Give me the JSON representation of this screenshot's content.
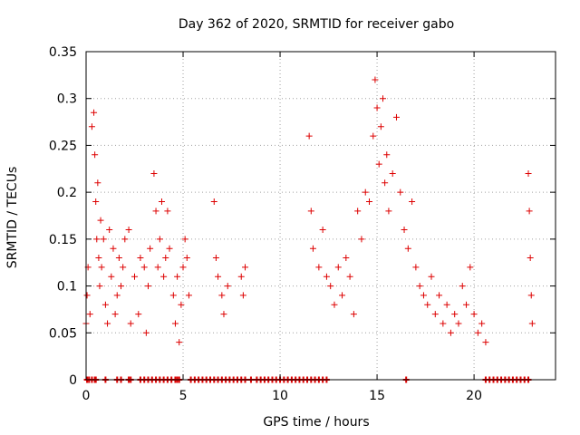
{
  "chart_data": {
    "type": "scatter",
    "title": "Day 362 of 2020, SRMTID for receiver gabo",
    "xlabel": "GPS time / hours",
    "ylabel": "SRMTID / TECUs",
    "xlim": [
      0,
      24.2
    ],
    "ylim": [
      0,
      0.35
    ],
    "xticks": [
      0,
      5,
      10,
      15,
      20
    ],
    "xtick_labels": [
      "0",
      "5",
      "10",
      "15",
      "20"
    ],
    "yticks": [
      0,
      0.05,
      0.1,
      0.15,
      0.2,
      0.25,
      0.3,
      0.35
    ],
    "ytick_labels": [
      "0",
      "0.05",
      "0.1",
      "0.15",
      "0.2",
      "0.25",
      "0.3",
      "0.35"
    ],
    "grid": true,
    "marker": "+",
    "color": "#dd0000",
    "series": [
      {
        "name": "SRMTID",
        "x": [
          0.0,
          0.05,
          0.1,
          0.2,
          0.3,
          0.4,
          0.45,
          0.5,
          0.55,
          0.6,
          0.65,
          0.7,
          0.75,
          0.8,
          0.9,
          1.0,
          1.1,
          1.2,
          1.3,
          1.4,
          1.5,
          1.6,
          1.7,
          1.8,
          1.9,
          2.0,
          2.2,
          2.3,
          2.5,
          2.7,
          2.8,
          3.0,
          3.1,
          3.2,
          3.3,
          3.5,
          3.6,
          3.7,
          3.8,
          3.9,
          4.0,
          4.1,
          4.2,
          4.3,
          4.5,
          4.6,
          4.7,
          4.8,
          4.9,
          5.0,
          5.1,
          5.2,
          5.3,
          6.6,
          6.7,
          6.8,
          7.0,
          7.1,
          7.3,
          8.0,
          8.1,
          8.2,
          11.5,
          11.6,
          11.7,
          12.0,
          12.2,
          12.4,
          12.6,
          12.8,
          13.0,
          13.2,
          13.4,
          13.6,
          13.8,
          14.0,
          14.2,
          14.4,
          14.6,
          14.8,
          14.9,
          15.0,
          15.1,
          15.2,
          15.3,
          15.4,
          15.5,
          15.6,
          15.8,
          16.0,
          16.2,
          16.4,
          16.6,
          16.8,
          17.0,
          17.2,
          17.4,
          17.6,
          17.8,
          18.0,
          18.2,
          18.4,
          18.6,
          18.8,
          19.0,
          19.2,
          19.4,
          19.6,
          19.8,
          20.0,
          20.2,
          20.4,
          20.6,
          22.8,
          22.85,
          22.9,
          22.95,
          23.0
        ],
        "y": [
          0.06,
          0.09,
          0.12,
          0.07,
          0.27,
          0.285,
          0.24,
          0.19,
          0.15,
          0.21,
          0.13,
          0.1,
          0.17,
          0.12,
          0.15,
          0.08,
          0.06,
          0.16,
          0.11,
          0.14,
          0.07,
          0.09,
          0.13,
          0.1,
          0.12,
          0.15,
          0.16,
          0.06,
          0.11,
          0.07,
          0.13,
          0.12,
          0.05,
          0.1,
          0.14,
          0.22,
          0.18,
          0.12,
          0.15,
          0.19,
          0.11,
          0.13,
          0.18,
          0.14,
          0.09,
          0.06,
          0.11,
          0.04,
          0.08,
          0.12,
          0.15,
          0.13,
          0.09,
          0.19,
          0.13,
          0.11,
          0.09,
          0.07,
          0.1,
          0.11,
          0.09,
          0.12,
          0.26,
          0.18,
          0.14,
          0.12,
          0.16,
          0.11,
          0.1,
          0.08,
          0.12,
          0.09,
          0.13,
          0.11,
          0.07,
          0.18,
          0.15,
          0.2,
          0.19,
          0.26,
          0.32,
          0.29,
          0.23,
          0.27,
          0.3,
          0.21,
          0.24,
          0.18,
          0.22,
          0.28,
          0.2,
          0.16,
          0.14,
          0.19,
          0.12,
          0.1,
          0.09,
          0.08,
          0.11,
          0.07,
          0.09,
          0.06,
          0.08,
          0.05,
          0.07,
          0.06,
          0.1,
          0.08,
          0.12,
          0.07,
          0.05,
          0.06,
          0.04,
          0.22,
          0.18,
          0.13,
          0.09,
          0.06
        ],
        "zero_x": [
          0.05,
          0.15,
          0.3,
          0.45,
          0.5,
          1.0,
          1.6,
          1.8,
          2.2,
          2.3,
          2.8,
          3.0,
          3.2,
          3.4,
          3.6,
          3.8,
          4.0,
          4.2,
          4.4,
          4.6,
          4.7,
          4.8,
          5.4,
          5.6,
          5.8,
          6.0,
          6.2,
          6.4,
          6.6,
          6.8,
          7.0,
          7.2,
          7.4,
          7.6,
          7.8,
          8.0,
          8.2,
          8.5,
          8.8,
          9.0,
          9.2,
          9.4,
          9.6,
          9.8,
          10.0,
          10.2,
          10.4,
          10.6,
          10.8,
          11.0,
          11.2,
          11.4,
          11.6,
          11.8,
          12.0,
          12.2,
          12.4,
          16.5,
          20.6,
          20.8,
          21.0,
          21.2,
          21.4,
          21.6,
          21.8,
          22.0,
          22.2,
          22.4,
          22.6,
          22.8
        ]
      }
    ]
  }
}
